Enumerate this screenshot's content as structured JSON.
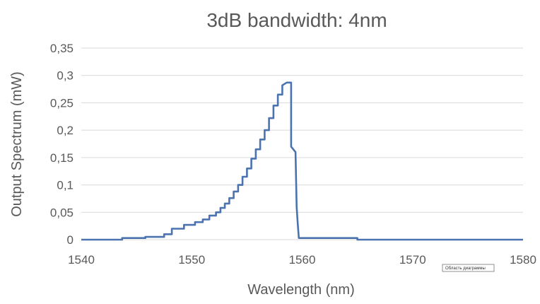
{
  "chart_data": {
    "type": "line",
    "title": "3dB bandwidth: 4nm",
    "xlabel": "Wavelength (nm)",
    "ylabel": "Output Spectrum (mW)",
    "xlim": [
      1540,
      1580
    ],
    "ylim": [
      0,
      0.35
    ],
    "x_ticks": [
      1540,
      1550,
      1560,
      1570,
      1580
    ],
    "x_tick_labels": [
      "1540",
      "1550",
      "1560",
      "1570",
      "1580"
    ],
    "y_ticks": [
      0,
      0.05,
      0.1,
      0.15,
      0.2,
      0.25,
      0.3,
      0.35
    ],
    "y_tick_labels": [
      "0",
      "0,05",
      "0,1",
      "0,15",
      "0,2",
      "0,25",
      "0,3",
      "0,35"
    ],
    "grid": "horizontal",
    "legend": "none",
    "series_color": "#4a73b0",
    "grid_color": "#d9d9d9",
    "series": [
      {
        "x": [
          1540,
          1543.7,
          1543.7,
          1545.8,
          1545.8,
          1547.5,
          1547.5,
          1548.2,
          1548.2,
          1549.3,
          1549.3,
          1550.3,
          1550.3,
          1551,
          1551,
          1551.6,
          1551.6,
          1552.2,
          1552.2,
          1552.6,
          1552.6,
          1553.0,
          1553.0,
          1553.4,
          1553.4,
          1553.8,
          1553.8,
          1554.2,
          1554.2,
          1554.6,
          1554.6,
          1555.0,
          1555.0,
          1555.4,
          1555.4,
          1555.8,
          1555.8,
          1556.2,
          1556.2,
          1556.6,
          1556.6,
          1557.0,
          1557.0,
          1557.4,
          1557.4,
          1557.8,
          1557.8,
          1558.2,
          1558.2,
          1558.6,
          1558.9,
          1559.0,
          1559.0,
          1559.4,
          1559.5,
          1559.6,
          1559.7,
          1560.0,
          1565.0,
          1565.0,
          1580
        ],
        "y": [
          0,
          0,
          0.003,
          0.003,
          0.005,
          0.005,
          0.01,
          0.01,
          0.02,
          0.02,
          0.027,
          0.027,
          0.032,
          0.032,
          0.037,
          0.037,
          0.044,
          0.044,
          0.05,
          0.05,
          0.058,
          0.058,
          0.066,
          0.066,
          0.076,
          0.076,
          0.088,
          0.088,
          0.1,
          0.1,
          0.115,
          0.115,
          0.13,
          0.13,
          0.148,
          0.148,
          0.165,
          0.165,
          0.183,
          0.183,
          0.2,
          0.2,
          0.222,
          0.222,
          0.245,
          0.245,
          0.265,
          0.265,
          0.282,
          0.287,
          0.287,
          0.287,
          0.17,
          0.16,
          0.06,
          0.03,
          0.003,
          0.003,
          0.003,
          0,
          0
        ]
      }
    ]
  },
  "tooltip_label": "Область диаграммы"
}
